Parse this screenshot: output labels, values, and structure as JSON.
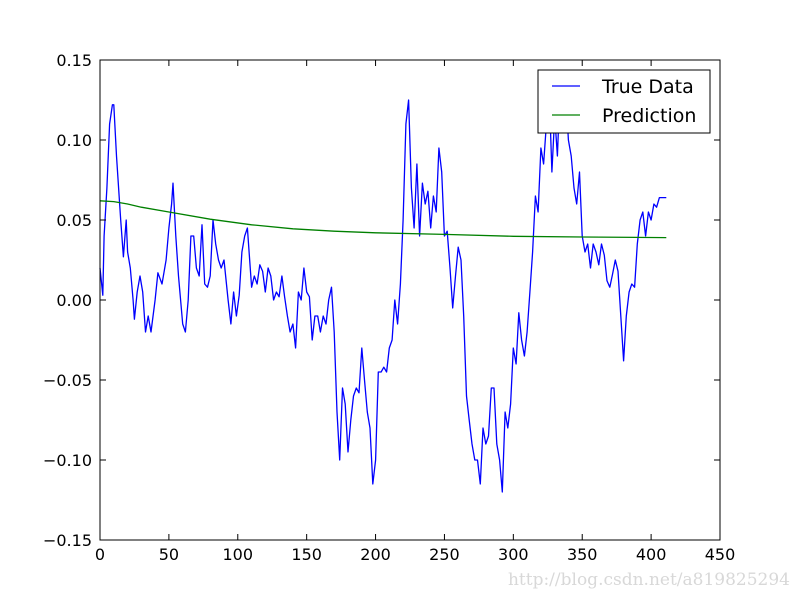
{
  "chart_data": {
    "type": "line",
    "title": "",
    "xlabel": "",
    "ylabel": "",
    "xlim": [
      0,
      450
    ],
    "ylim": [
      -0.15,
      0.15
    ],
    "xticks": [
      0,
      50,
      100,
      150,
      200,
      250,
      300,
      350,
      400,
      450
    ],
    "yticks": [
      -0.15,
      -0.1,
      -0.05,
      0.0,
      0.05,
      0.1,
      0.15
    ],
    "ytick_labels": [
      "−0.15",
      "−0.10",
      "−0.05",
      "0.00",
      "0.05",
      "0.10",
      "0.15"
    ],
    "grid": false,
    "legend_placement": "top-right",
    "series": [
      {
        "name": "True Data",
        "color": "#0000ff",
        "x": [
          0,
          2,
          3,
          5,
          7,
          9,
          10,
          12,
          15,
          17,
          19,
          20,
          22,
          24,
          25,
          27,
          29,
          31,
          33,
          35,
          37,
          40,
          42,
          45,
          48,
          50,
          52,
          53,
          55,
          57,
          60,
          62,
          64,
          66,
          68,
          70,
          72,
          74,
          76,
          78,
          80,
          82,
          84,
          86,
          88,
          90,
          93,
          95,
          97,
          99,
          101,
          103,
          105,
          107,
          110,
          112,
          114,
          116,
          118,
          120,
          122,
          124,
          126,
          128,
          130,
          132,
          134,
          136,
          138,
          140,
          142,
          144,
          146,
          148,
          150,
          152,
          154,
          156,
          158,
          160,
          162,
          164,
          166,
          168,
          170,
          172,
          174,
          176,
          178,
          180,
          182,
          184,
          186,
          188,
          190,
          192,
          194,
          196,
          198,
          200,
          202,
          204,
          206,
          208,
          210,
          212,
          214,
          216,
          218,
          220,
          222,
          224,
          226,
          228,
          230,
          232,
          234,
          236,
          238,
          240,
          242,
          244,
          246,
          248,
          250,
          252,
          254,
          256,
          258,
          260,
          262,
          264,
          266,
          268,
          270,
          272,
          274,
          276,
          278,
          280,
          282,
          284,
          286,
          288,
          290,
          292,
          294,
          296,
          298,
          300,
          302,
          304,
          306,
          308,
          310,
          312,
          314,
          316,
          318,
          320,
          322,
          324,
          326,
          328,
          330,
          332,
          334,
          336,
          338,
          340,
          342,
          344,
          346,
          348,
          350,
          352,
          354,
          356,
          358,
          360,
          362,
          364,
          366,
          368,
          370,
          372,
          374,
          376,
          378,
          380,
          382,
          384,
          386,
          388,
          390,
          392,
          394,
          396,
          398,
          400,
          402,
          404,
          406,
          411
        ],
        "y": [
          0.02,
          0.003,
          0.04,
          0.07,
          0.11,
          0.122,
          0.122,
          0.09,
          0.05,
          0.027,
          0.05,
          0.03,
          0.02,
          0.0,
          -0.012,
          0.005,
          0.015,
          0.005,
          -0.02,
          -0.01,
          -0.02,
          0.0,
          0.017,
          0.01,
          0.025,
          0.045,
          0.06,
          0.073,
          0.04,
          0.015,
          -0.015,
          -0.02,
          0.0,
          0.04,
          0.04,
          0.02,
          0.015,
          0.047,
          0.01,
          0.008,
          0.015,
          0.05,
          0.035,
          0.025,
          0.02,
          0.025,
          0.0,
          -0.015,
          0.005,
          -0.01,
          0.003,
          0.03,
          0.04,
          0.045,
          0.008,
          0.015,
          0.01,
          0.022,
          0.018,
          0.005,
          0.02,
          0.015,
          0.0,
          0.005,
          0.002,
          0.015,
          0.002,
          -0.01,
          -0.02,
          -0.015,
          -0.03,
          0.005,
          0.0,
          0.02,
          0.005,
          0.002,
          -0.025,
          -0.01,
          -0.01,
          -0.02,
          -0.01,
          -0.015,
          0.0,
          0.008,
          -0.02,
          -0.07,
          -0.1,
          -0.055,
          -0.065,
          -0.095,
          -0.075,
          -0.06,
          -0.055,
          -0.058,
          -0.03,
          -0.05,
          -0.07,
          -0.08,
          -0.115,
          -0.1,
          -0.045,
          -0.045,
          -0.042,
          -0.045,
          -0.03,
          -0.025,
          0.0,
          -0.015,
          0.01,
          0.05,
          0.11,
          0.125,
          0.07,
          0.045,
          0.085,
          0.04,
          0.073,
          0.06,
          0.068,
          0.045,
          0.065,
          0.055,
          0.095,
          0.08,
          0.04,
          0.043,
          0.02,
          -0.005,
          0.015,
          0.033,
          0.025,
          -0.01,
          -0.06,
          -0.075,
          -0.09,
          -0.1,
          -0.1,
          -0.115,
          -0.08,
          -0.09,
          -0.085,
          -0.055,
          -0.055,
          -0.09,
          -0.1,
          -0.12,
          -0.07,
          -0.08,
          -0.065,
          -0.03,
          -0.04,
          -0.008,
          -0.025,
          -0.035,
          -0.02,
          0.005,
          0.03,
          0.065,
          0.055,
          0.095,
          0.085,
          0.11,
          0.13,
          0.08,
          0.115,
          0.09,
          0.135,
          0.14,
          0.13,
          0.1,
          0.09,
          0.07,
          0.06,
          0.08,
          0.04,
          0.03,
          0.035,
          0.02,
          0.035,
          0.03,
          0.022,
          0.035,
          0.028,
          0.012,
          0.008,
          0.016,
          0.025,
          0.018,
          -0.01,
          -0.038,
          -0.01,
          0.005,
          0.01,
          0.008,
          0.035,
          0.05,
          0.055,
          0.04,
          0.055,
          0.05,
          0.06,
          0.058,
          0.064,
          0.064
        ]
      },
      {
        "name": "Prediction",
        "color": "#008000",
        "x": [
          0,
          10,
          20,
          30,
          50,
          80,
          110,
          140,
          170,
          200,
          250,
          300,
          350,
          411
        ],
        "y": [
          0.062,
          0.0615,
          0.06,
          0.058,
          0.055,
          0.0505,
          0.047,
          0.0445,
          0.043,
          0.042,
          0.041,
          0.0398,
          0.0394,
          0.039
        ]
      }
    ]
  },
  "watermark": "http://blog.csdn.net/a819825294"
}
